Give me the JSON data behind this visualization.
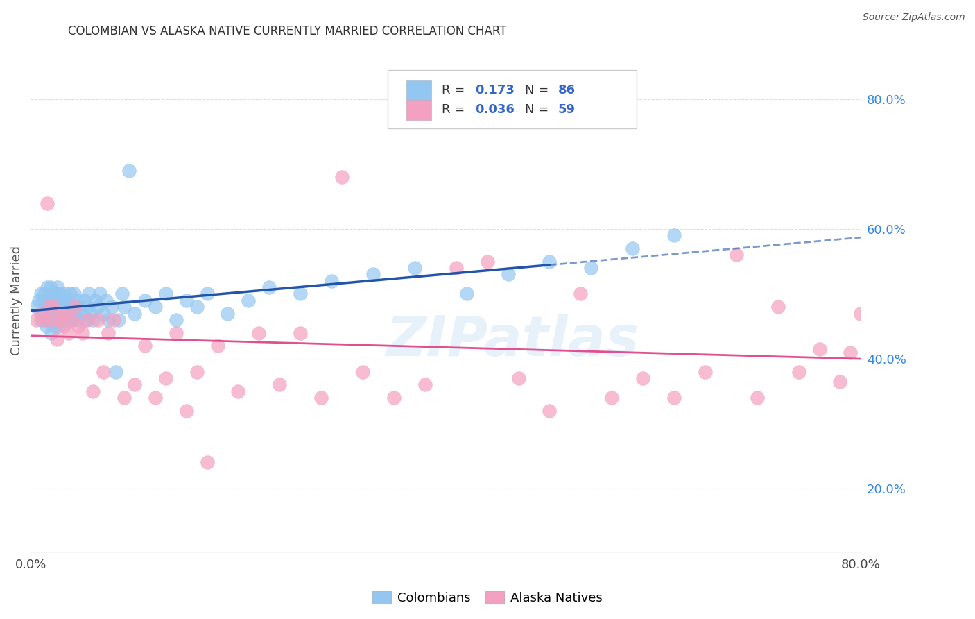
{
  "title": "COLOMBIAN VS ALASKA NATIVE CURRENTLY MARRIED CORRELATION CHART",
  "source": "Source: ZipAtlas.com",
  "ylabel": "Currently Married",
  "xlim": [
    0.0,
    0.8
  ],
  "ylim": [
    0.1,
    0.88
  ],
  "x_tick_positions": [
    0.0,
    0.1,
    0.2,
    0.3,
    0.4,
    0.5,
    0.6,
    0.7,
    0.8
  ],
  "x_tick_labels": [
    "0.0%",
    "",
    "",
    "",
    "",
    "",
    "",
    "",
    "80.0%"
  ],
  "y_tick_positions_right": [
    0.8,
    0.6,
    0.4,
    0.2
  ],
  "y_tick_labels_right": [
    "80.0%",
    "60.0%",
    "40.0%",
    "20.0%"
  ],
  "blue_color": "#93C6F0",
  "pink_color": "#F4A0C0",
  "line_blue": "#2255AA",
  "line_pink": "#E05090",
  "R_colombian": 0.173,
  "N_colombian": 86,
  "R_alaska": 0.036,
  "N_alaska": 59,
  "watermark": "ZIPatlas",
  "legend_label_1": "Colombians",
  "legend_label_2": "Alaska Natives",
  "colombian_x": [
    0.005,
    0.008,
    0.01,
    0.01,
    0.012,
    0.012,
    0.013,
    0.015,
    0.015,
    0.016,
    0.016,
    0.017,
    0.018,
    0.018,
    0.019,
    0.02,
    0.02,
    0.021,
    0.022,
    0.023,
    0.023,
    0.024,
    0.025,
    0.025,
    0.026,
    0.027,
    0.027,
    0.028,
    0.028,
    0.03,
    0.03,
    0.031,
    0.032,
    0.033,
    0.034,
    0.035,
    0.036,
    0.037,
    0.038,
    0.04,
    0.041,
    0.042,
    0.043,
    0.045,
    0.046,
    0.047,
    0.05,
    0.052,
    0.053,
    0.055,
    0.056,
    0.058,
    0.06,
    0.062,
    0.065,
    0.067,
    0.07,
    0.073,
    0.075,
    0.078,
    0.082,
    0.085,
    0.088,
    0.09,
    0.095,
    0.1,
    0.11,
    0.12,
    0.13,
    0.14,
    0.15,
    0.16,
    0.17,
    0.19,
    0.21,
    0.23,
    0.26,
    0.29,
    0.33,
    0.37,
    0.42,
    0.46,
    0.5,
    0.54,
    0.58,
    0.62
  ],
  "colombian_y": [
    0.48,
    0.49,
    0.46,
    0.5,
    0.47,
    0.49,
    0.5,
    0.45,
    0.48,
    0.46,
    0.51,
    0.48,
    0.46,
    0.49,
    0.51,
    0.44,
    0.47,
    0.49,
    0.5,
    0.45,
    0.48,
    0.5,
    0.46,
    0.49,
    0.51,
    0.45,
    0.48,
    0.5,
    0.46,
    0.47,
    0.49,
    0.46,
    0.48,
    0.5,
    0.47,
    0.49,
    0.46,
    0.48,
    0.5,
    0.46,
    0.48,
    0.5,
    0.47,
    0.49,
    0.46,
    0.48,
    0.47,
    0.49,
    0.46,
    0.48,
    0.5,
    0.47,
    0.46,
    0.49,
    0.48,
    0.5,
    0.47,
    0.49,
    0.46,
    0.48,
    0.38,
    0.46,
    0.5,
    0.48,
    0.69,
    0.47,
    0.49,
    0.48,
    0.5,
    0.46,
    0.49,
    0.48,
    0.5,
    0.47,
    0.49,
    0.51,
    0.5,
    0.52,
    0.53,
    0.54,
    0.5,
    0.53,
    0.55,
    0.54,
    0.57,
    0.59
  ],
  "alaska_x": [
    0.005,
    0.01,
    0.013,
    0.016,
    0.018,
    0.02,
    0.022,
    0.025,
    0.027,
    0.03,
    0.032,
    0.035,
    0.037,
    0.04,
    0.043,
    0.046,
    0.05,
    0.055,
    0.06,
    0.065,
    0.07,
    0.075,
    0.08,
    0.09,
    0.1,
    0.11,
    0.12,
    0.13,
    0.14,
    0.15,
    0.16,
    0.17,
    0.18,
    0.2,
    0.22,
    0.24,
    0.26,
    0.28,
    0.3,
    0.32,
    0.35,
    0.38,
    0.41,
    0.44,
    0.47,
    0.5,
    0.53,
    0.56,
    0.59,
    0.62,
    0.65,
    0.68,
    0.7,
    0.72,
    0.74,
    0.76,
    0.78,
    0.79,
    0.8
  ],
  "alaska_y": [
    0.46,
    0.47,
    0.46,
    0.64,
    0.48,
    0.46,
    0.48,
    0.43,
    0.46,
    0.47,
    0.45,
    0.47,
    0.44,
    0.46,
    0.48,
    0.45,
    0.44,
    0.46,
    0.35,
    0.46,
    0.38,
    0.44,
    0.46,
    0.34,
    0.36,
    0.42,
    0.34,
    0.37,
    0.44,
    0.32,
    0.38,
    0.24,
    0.42,
    0.35,
    0.44,
    0.36,
    0.44,
    0.34,
    0.68,
    0.38,
    0.34,
    0.36,
    0.54,
    0.55,
    0.37,
    0.32,
    0.5,
    0.34,
    0.37,
    0.34,
    0.38,
    0.56,
    0.34,
    0.48,
    0.38,
    0.415,
    0.365,
    0.41,
    0.47
  ]
}
